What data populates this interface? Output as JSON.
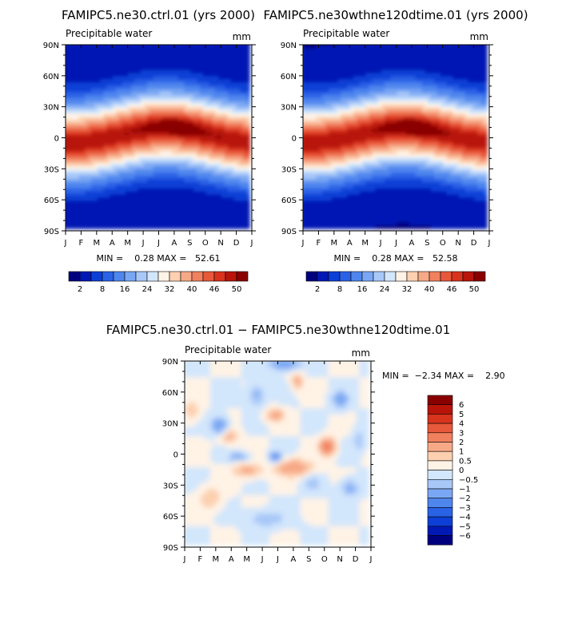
{
  "chart_data": [
    {
      "type": "heatmap",
      "title": "FAMIPC5.ne30.ctrl.01 (yrs 2000)",
      "subtitle": "Precipitable water",
      "units": "mm",
      "x_tick_labels": [
        "J",
        "F",
        "M",
        "A",
        "M",
        "J",
        "J",
        "A",
        "S",
        "O",
        "N",
        "D",
        "J"
      ],
      "y_tick_labels": [
        "90N",
        "60N",
        "30N",
        "0",
        "30S",
        "60S",
        "90S"
      ],
      "ylim": [
        -90,
        90
      ],
      "stats_text": "MIN =    0.28 MAX =   52.61",
      "min": 0.28,
      "max": 52.61,
      "legend_labels": [
        "2",
        "8",
        "16",
        "24",
        "32",
        "40",
        "46",
        "50"
      ],
      "legend_colors": [
        "#00007f",
        "#0019b4",
        "#0d3fd6",
        "#2a62e6",
        "#4f86ee",
        "#7aa7f3",
        "#a8c8f8",
        "#d2e6fc",
        "#fff3e6",
        "#fcd0b0",
        "#f7a987",
        "#f1805e",
        "#e8583a",
        "#d8331c",
        "#b8140a",
        "#8a0000"
      ]
    },
    {
      "type": "heatmap",
      "title": "FAMIPC5.ne30wthne120dtime.01 (yrs 2000)",
      "subtitle": "Precipitable water",
      "units": "mm",
      "x_tick_labels": [
        "J",
        "F",
        "M",
        "A",
        "M",
        "J",
        "J",
        "A",
        "S",
        "O",
        "N",
        "D",
        "J"
      ],
      "y_tick_labels": [
        "90N",
        "60N",
        "30N",
        "0",
        "30S",
        "60S",
        "90S"
      ],
      "ylim": [
        -90,
        90
      ],
      "stats_text": "MIN =    0.28 MAX =   52.58",
      "min": 0.28,
      "max": 52.58,
      "legend_labels": [
        "2",
        "8",
        "16",
        "24",
        "32",
        "40",
        "46",
        "50"
      ],
      "legend_colors": [
        "#00007f",
        "#0019b4",
        "#0d3fd6",
        "#2a62e6",
        "#4f86ee",
        "#7aa7f3",
        "#a8c8f8",
        "#d2e6fc",
        "#fff3e6",
        "#fcd0b0",
        "#f7a987",
        "#f1805e",
        "#e8583a",
        "#d8331c",
        "#b8140a",
        "#8a0000"
      ]
    },
    {
      "type": "heatmap",
      "title": "FAMIPC5.ne30.ctrl.01 − FAMIPC5.ne30wthne120dtime.01",
      "subtitle": "Precipitable water",
      "units": "mm",
      "x_tick_labels": [
        "J",
        "F",
        "M",
        "A",
        "M",
        "J",
        "J",
        "A",
        "S",
        "O",
        "N",
        "D",
        "J"
      ],
      "y_tick_labels": [
        "90N",
        "60N",
        "30N",
        "0",
        "30S",
        "60S",
        "90S"
      ],
      "ylim": [
        -90,
        90
      ],
      "stats_text": "MIN =  −2.34 MAX =    2.90",
      "min": -2.34,
      "max": 2.9,
      "legend_labels": [
        "6",
        "5",
        "4",
        "3",
        "2",
        "1",
        "0.5",
        "0",
        "−0.5",
        "−1",
        "−2",
        "−3",
        "−4",
        "−5",
        "−6"
      ],
      "legend_colors": [
        "#8a0000",
        "#b8140a",
        "#d8331c",
        "#e8583a",
        "#f1805e",
        "#f7a987",
        "#fcd0b0",
        "#fff3e6",
        "#d2e6fc",
        "#a8c8f8",
        "#7aa7f3",
        "#4f86ee",
        "#2a62e6",
        "#0d3fd6",
        "#0019b4",
        "#00007f"
      ]
    }
  ]
}
